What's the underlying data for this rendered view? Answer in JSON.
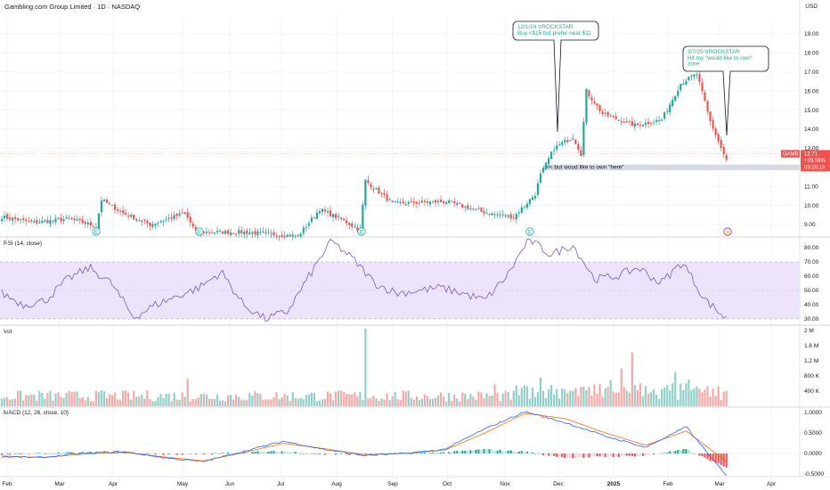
{
  "header": {
    "title": "Gambling.com Group Limited · 1D · NASDAQ",
    "currency": "USD"
  },
  "colors": {
    "up": "#26a69a",
    "down": "#ef5350",
    "rsi_line": "#7e57c2",
    "rsi_band": "#ede3fb",
    "macd_line": "#2962ff",
    "signal_line": "#ff6d00",
    "grid": "#f0f3fa"
  },
  "panes": {
    "rsi_label": "RSI (14, close)",
    "vol_label": "Vol",
    "macd_label": "MACD (12, 26, close, 10)"
  },
  "annotations": [
    {
      "lines": [
        "12/1/24 VROCKSTAR",
        "Buy <$15 but prefer near $11"
      ]
    },
    {
      "lines": [
        "3/7/25 VROCKSTAR",
        "Hit my \"would like to own\"",
        "zone"
      ]
    }
  ],
  "zone": {
    "label": "<< but woud like to own \"here\"",
    "y_low": 11.85,
    "y_high": 12.15
  },
  "price_tag": {
    "symbol": "GAMB",
    "last": "12.71",
    "change": "+29.58%",
    "countdown": "03:26:18",
    "value": 12.71
  },
  "chart_data": [
    {
      "type": "candlestick",
      "title": "Gambling.com Group Limited · 1D · NASDAQ",
      "x_ticks": [
        "Feb",
        "Mar",
        "Apr",
        "May",
        "Jun",
        "Jul",
        "Aug",
        "Sep",
        "Oct",
        "Nov",
        "Dec",
        "2025",
        "Feb",
        "Mar",
        "Apr"
      ],
      "y_ticks": [
        "9.00",
        "10.00",
        "11.00",
        "12.00",
        "13.00",
        "14.00",
        "15.00",
        "16.00",
        "17.00",
        "18.00",
        "19.00"
      ],
      "ylim": [
        8.5,
        20.2
      ],
      "unit": "USD",
      "close_series": {
        "x": [
          "Feb",
          "Mar",
          "Apr",
          "May",
          "Jun",
          "Jul",
          "Aug",
          "Sep",
          "Oct",
          "Nov",
          "Dec",
          "2025",
          "Feb",
          "Mar"
        ],
        "values": [
          9.4,
          9.1,
          9.3,
          9.3,
          8.8,
          8.7,
          9.4,
          10.2,
          10.1,
          10.6,
          13.1,
          15.0,
          16.7,
          12.0
        ]
      },
      "events": [
        {
          "x": "Mar",
          "label": "E"
        },
        {
          "x": "May",
          "label": "E"
        },
        {
          "x": "Aug",
          "label": "E"
        },
        {
          "x": "Nov",
          "label": "E"
        },
        {
          "x": "Mar",
          "label": "⚡"
        }
      ]
    },
    {
      "type": "line",
      "title": "RSI (14, close)",
      "y_ticks": [
        "30.00",
        "40.00",
        "50.00",
        "60.00",
        "70.00",
        "80.00"
      ],
      "ylim": [
        28,
        84
      ],
      "band": [
        30,
        70
      ],
      "values": [
        48,
        40,
        43,
        58,
        66,
        55,
        31,
        40,
        46,
        52,
        63,
        40,
        30,
        35,
        60,
        85,
        72,
        55,
        48,
        50,
        52,
        48,
        43,
        60,
        86,
        75,
        82,
        58,
        60,
        66,
        55,
        70,
        44,
        30
      ]
    },
    {
      "type": "bar",
      "title": "Vol",
      "y_ticks": [
        "400 K",
        "800 K",
        "1.2 M",
        "1.6 M",
        "2 M"
      ],
      "ylim": [
        0,
        2100000
      ],
      "notable": [
        {
          "label": "Aug spike",
          "value": 2050000
        },
        {
          "label": "Dec spike",
          "value": 1420000
        }
      ]
    },
    {
      "type": "line",
      "title": "MACD (12, 26, close, 10)",
      "y_ticks": [
        "-0.5000",
        "0.0000",
        "0.5000",
        "1.0000"
      ],
      "ylim": [
        -0.62,
        1.1
      ],
      "series": [
        {
          "name": "MACD",
          "values": [
            -0.08,
            -0.1,
            0.0,
            0.05,
            -0.1,
            -0.2,
            0.05,
            0.3,
            0.1,
            -0.05,
            0.0,
            0.1,
            0.6,
            1.02,
            0.75,
            0.42,
            0.15,
            0.65,
            -0.55
          ]
        },
        {
          "name": "Signal",
          "values": [
            -0.06,
            -0.1,
            -0.02,
            0.03,
            -0.08,
            -0.18,
            0.02,
            0.25,
            0.12,
            -0.03,
            0.0,
            0.08,
            0.5,
            0.98,
            0.85,
            0.5,
            0.2,
            0.55,
            -0.2
          ]
        }
      ]
    }
  ]
}
